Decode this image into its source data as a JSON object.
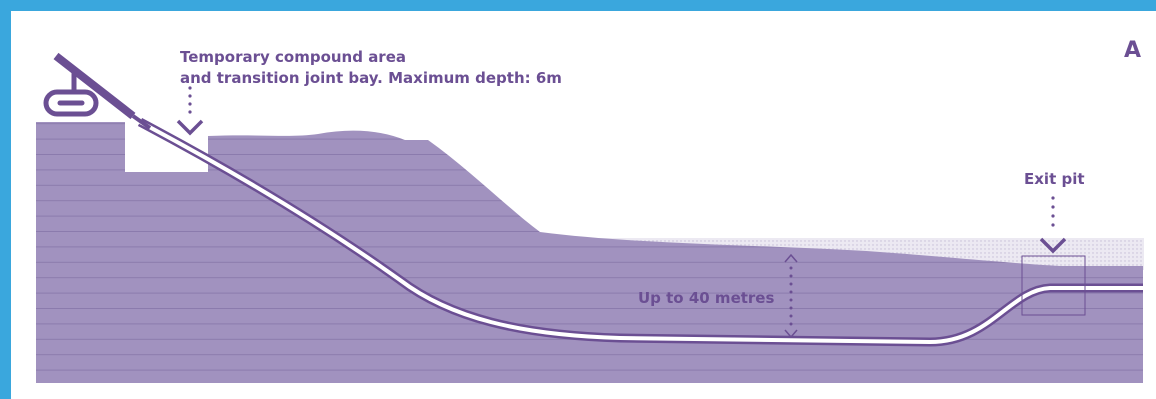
{
  "labels": {
    "compound_line1": "Temporary compound area",
    "compound_line2": "and transition joint bay. Maximum depth: 6m",
    "exit_pit": "Exit pit",
    "depth": "Up to 40 metres",
    "corner": "A"
  },
  "colors": {
    "frame": "#3aa7dd",
    "ground": "#a192bf",
    "stroke": "#6b4f93",
    "stripes": "#8b7bad",
    "light_band": "#d9d4e4"
  },
  "icons": [
    "drilling-rig-icon",
    "down-arrow-icon"
  ]
}
